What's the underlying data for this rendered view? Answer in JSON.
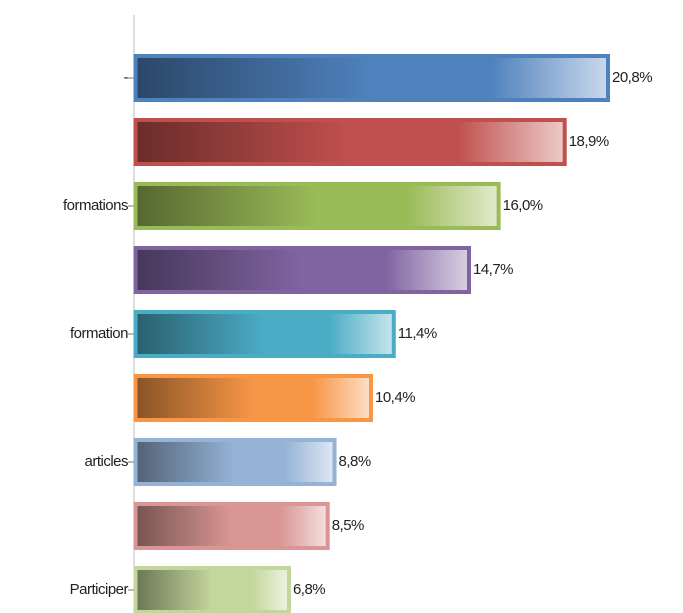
{
  "chart_data": {
    "type": "bar",
    "orientation": "horizontal",
    "categories": [
      "-",
      null,
      "formations",
      null,
      "formation",
      null,
      "articles",
      null,
      "Participer"
    ],
    "values": [
      20.8,
      18.9,
      16.0,
      14.7,
      11.4,
      10.4,
      8.8,
      8.5,
      6.8
    ],
    "value_labels": [
      "20,8%",
      "18,9%",
      "16,0%",
      "14,7%",
      "11,4%",
      "10,4%",
      "8,8%",
      "8,5%",
      "6,8%"
    ],
    "colors": [
      "#4f81bd",
      "#c0504d",
      "#9bbb59",
      "#8064a2",
      "#4bacc6",
      "#f79646",
      "#95b3d7",
      "#d99694",
      "#c3d69b"
    ]
  }
}
